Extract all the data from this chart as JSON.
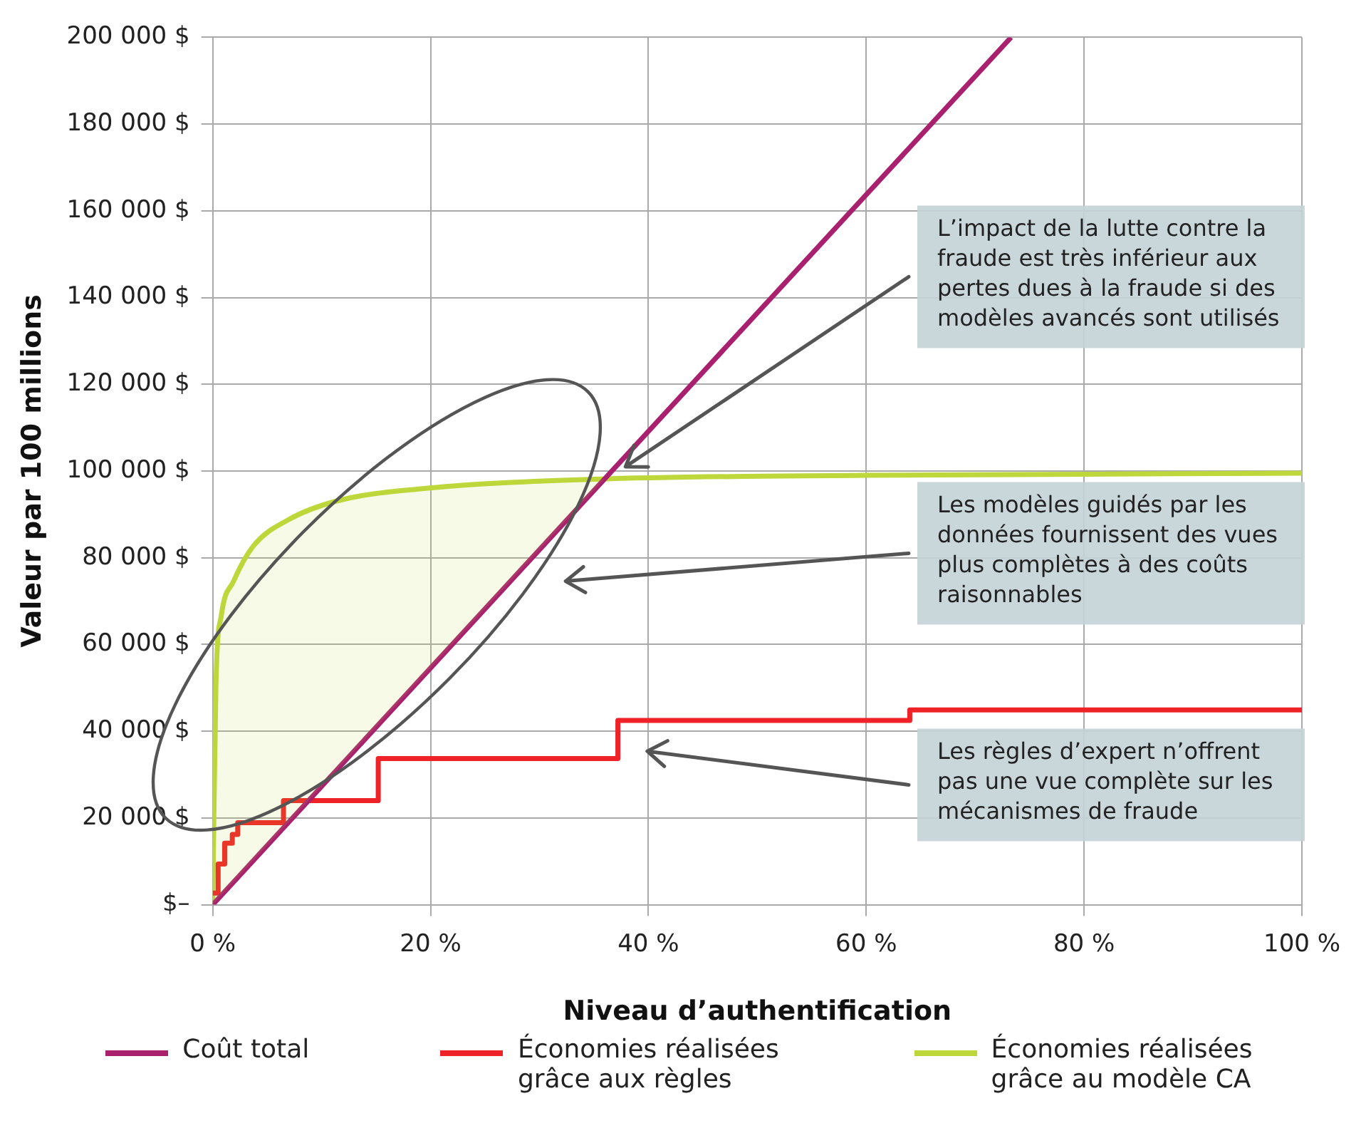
{
  "chart_data": {
    "type": "line",
    "xlabel": "Niveau d’authentification",
    "ylabel": "Valeur par 100 millions",
    "xlim": [
      0,
      100
    ],
    "xticks": [
      {
        "value": 0,
        "label": "0 %"
      },
      {
        "value": 20,
        "label": "20 %"
      },
      {
        "value": 40,
        "label": "40 %"
      },
      {
        "value": 60,
        "label": "60 %"
      },
      {
        "value": 80,
        "label": "80 %"
      },
      {
        "value": 100,
        "label": "100 %"
      }
    ],
    "ylim": [
      0,
      200000
    ],
    "yticks": [
      {
        "value": 0,
        "label": "$–"
      },
      {
        "value": 20000,
        "label": "20 000 $"
      },
      {
        "value": 40000,
        "label": "40 000 $"
      },
      {
        "value": 60000,
        "label": "60 000 $"
      },
      {
        "value": 80000,
        "label": "80 000 $"
      },
      {
        "value": 100000,
        "label": "100 000 $"
      },
      {
        "value": 120000,
        "label": "120 000 $"
      },
      {
        "value": 140000,
        "label": "140 000 $"
      },
      {
        "value": 160000,
        "label": "160 000 $"
      },
      {
        "value": 180000,
        "label": "180 000 $"
      },
      {
        "value": 200000,
        "label": "200 000 $"
      }
    ],
    "grid": true,
    "legend": "bottom",
    "marker": "none",
    "series": [
      {
        "name": "Coût total",
        "type": "line",
        "color": "#a8206e",
        "x": [
          0,
          73.3
        ],
        "values": [
          0,
          200000
        ]
      },
      {
        "name": "Économies réalisées grâce aux règles",
        "type": "step",
        "color": "#ee2227",
        "x": [
          0,
          0.5,
          1.1,
          1.8,
          2.3,
          6.5,
          15.2,
          37.2,
          64,
          100
        ],
        "values": [
          2700,
          9400,
          14200,
          16200,
          18900,
          24000,
          33700,
          42500,
          44900,
          44900
        ]
      },
      {
        "name": "Économies réalisées grâce au modèle CA",
        "type": "line",
        "color": "#bed73b",
        "x": [
          0,
          0.3,
          0.8,
          1.9,
          3.7,
          6.9,
          11.4,
          20,
          35,
          60,
          100
        ],
        "values": [
          0,
          51000,
          66800,
          74500,
          82600,
          88700,
          93100,
          96100,
          98100,
          99000,
          99500
        ]
      }
    ],
    "annotations": [
      {
        "text": "L’impact de la lutte contre la fraude est très inférieur aux pertes dues à la fraude si des modèles avancés sont utilisés",
        "x": 37.9,
        "y": 101000
      },
      "Les modèles guidés par les données fournissent des vues plus complètes à des coûts raisonnables",
      "Les règles d’expert n’offrent pas une vue complète sur les mécanismes de fraude"
    ]
  }
}
